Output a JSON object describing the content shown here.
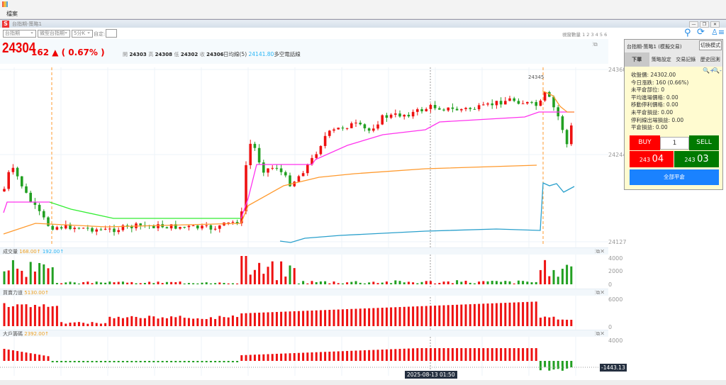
{
  "menu": {
    "file": "檔案"
  },
  "window": {
    "title": "台指期-策略1",
    "buttons": [
      "—",
      "❐",
      "✕"
    ]
  },
  "toolbar": {
    "symbol": "台指期",
    "contract": "微型台指期",
    "period": "5分K",
    "custom_label": "自定:",
    "custom_value": "",
    "window_count_label": "視窗數量 1 2 3 4 5 6"
  },
  "quote": {
    "price": "24304",
    "change": "162 ▲ ( 0.67% )",
    "open_label": "開",
    "open": "24303",
    "high_label": "高",
    "high": "24308",
    "low_label": "低",
    "low": "24302",
    "close_label": "收",
    "close": "24306",
    "ma_label": "日均線(5)",
    "ma_value": "24141.80",
    "ma_suffix": "多空電話線"
  },
  "main_chart": {
    "y_ticks": [
      "24360",
      "24244",
      "24127"
    ],
    "peak_label": "24345"
  },
  "volume": {
    "title": "成交量",
    "v1": "168.00↑",
    "v2": "192.00↑",
    "y_ticks": [
      "4000",
      "2000",
      "0"
    ]
  },
  "power": {
    "title": "買賣力道",
    "v1": "5130.00↑",
    "y_ticks": [
      "6000",
      "0"
    ]
  },
  "big": {
    "title": "大戶籌碼",
    "v1": "2392.00↑",
    "y_ticks": [
      "4000"
    ],
    "last": "-1443.13"
  },
  "crosshair": {
    "time": "2025-08-13  01:50"
  },
  "colors": {
    "up": "#ee1111",
    "down": "#22a022",
    "ma_orange": "#ff9a2e",
    "magenta": "#ff33ee",
    "green_line": "#33ee33",
    "blue": "#2aa0cc"
  },
  "panel": {
    "title": "台指期-策略1 (模擬交易)",
    "mode_button": "切換模式",
    "tabs": [
      "下單",
      "策略設定",
      "交易記錄",
      "歷史回測"
    ],
    "info": [
      "收盤價: 24302.00",
      "今日漲跌: 160 (0.66%)",
      "未平倉部位: 0",
      "平均進場價格: 0.00",
      "移動停利價格: 0.00",
      "未平倉損益: 0.00",
      "停利線出場損益: 0.00",
      "平倉損益: 0.00"
    ],
    "buy": "BUY",
    "sell": "SELL",
    "qty": "1",
    "buy_price_small": "243",
    "buy_price_big": "04",
    "sell_price_small": "243",
    "sell_price_big": "03",
    "close_all": "全部平倉"
  },
  "icons": [
    "antenna-icon",
    "refresh-icon",
    "user-list-icon",
    "zoom-in-icon",
    "zoom-out-icon"
  ]
}
